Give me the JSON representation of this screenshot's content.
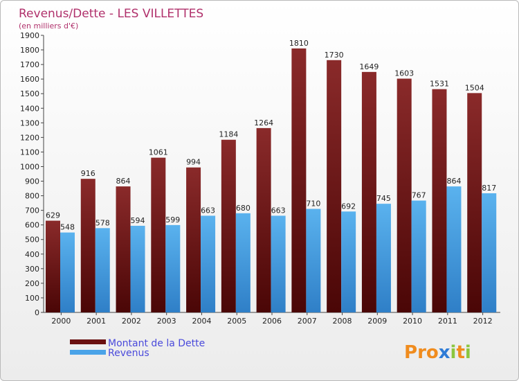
{
  "chart_data": {
    "type": "bar",
    "title": "Revenus/Dette - LES VILLETTES",
    "subtitle": "(en milliers d'€)",
    "categories": [
      "2000",
      "2001",
      "2002",
      "2003",
      "2004",
      "2005",
      "2006",
      "2007",
      "2008",
      "2009",
      "2010",
      "2011",
      "2012"
    ],
    "series": [
      {
        "name": "Montant de la Dette",
        "color": "#7a1c1c",
        "values": [
          629,
          916,
          864,
          1061,
          994,
          1184,
          1264,
          1810,
          1730,
          1649,
          1603,
          1531,
          1504
        ]
      },
      {
        "name": "Revenus",
        "color": "#4aa3e8",
        "values": [
          548,
          578,
          594,
          599,
          663,
          680,
          663,
          710,
          692,
          745,
          767,
          864,
          817
        ]
      }
    ],
    "ylim": [
      0,
      1900
    ],
    "ytick_step": 100,
    "grid": false,
    "legend_position": "bottom-left"
  },
  "logo": {
    "letters": [
      "P",
      "r",
      "o",
      "x",
      "i",
      "t",
      "i"
    ],
    "colors": [
      "#f08c1e",
      "#f08c1e",
      "#f08c1e",
      "#2e7bd6",
      "#8cc63f",
      "#f08c1e",
      "#8cc63f"
    ]
  }
}
